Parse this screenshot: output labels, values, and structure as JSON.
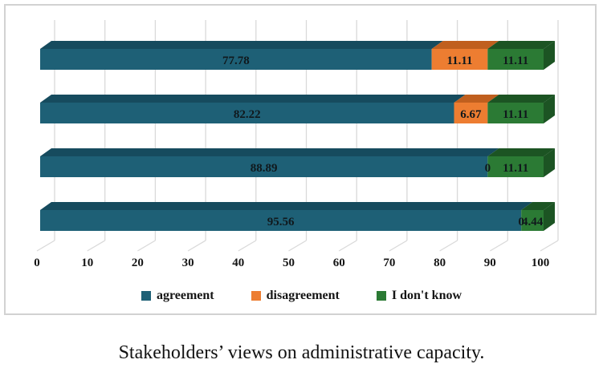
{
  "figure": {
    "caption": "Stakeholders’ views on administrative capacity."
  },
  "chart_data": {
    "type": "bar",
    "orientation": "horizontal",
    "stacked": true,
    "effect_3d": true,
    "title": "",
    "xlabel": "",
    "ylabel": "",
    "xlim": [
      0,
      100
    ],
    "x_ticks": [
      "0",
      "10",
      "20",
      "30",
      "40",
      "50",
      "60",
      "70",
      "80",
      "90",
      "100"
    ],
    "grid": "vertical",
    "legend_position": "bottom",
    "categories": [
      "",
      "",
      "",
      ""
    ],
    "series": [
      {
        "name": "agreement",
        "color": "#1E6076",
        "color_dark": "#164B5E",
        "values": [
          77.78,
          82.22,
          88.89,
          95.56
        ]
      },
      {
        "name": "disagreement",
        "color": "#ED7D31",
        "color_dark": "#C05F1E",
        "values": [
          11.11,
          6.67,
          0,
          0
        ]
      },
      {
        "name": "I don't know",
        "color": "#2B7A34",
        "color_dark": "#1C5423",
        "values": [
          11.11,
          11.11,
          11.11,
          4.44
        ]
      }
    ],
    "value_labels": [
      [
        "77.78",
        "11.11",
        "11.11"
      ],
      [
        "82.22",
        "6.67",
        "11.11"
      ],
      [
        "88.89",
        "0",
        "11.11"
      ],
      [
        "95.56",
        "0",
        "4.44"
      ]
    ]
  },
  "legend": {
    "items": [
      {
        "label": "agreement",
        "color": "#1E6076"
      },
      {
        "label": "disagreement",
        "color": "#ED7D31"
      },
      {
        "label": "I don't know",
        "color": "#2B7A34"
      }
    ]
  },
  "colors": {
    "gridline": "#d9d9d9",
    "frame": "#d2d2d2",
    "label_text": "#10181c"
  }
}
